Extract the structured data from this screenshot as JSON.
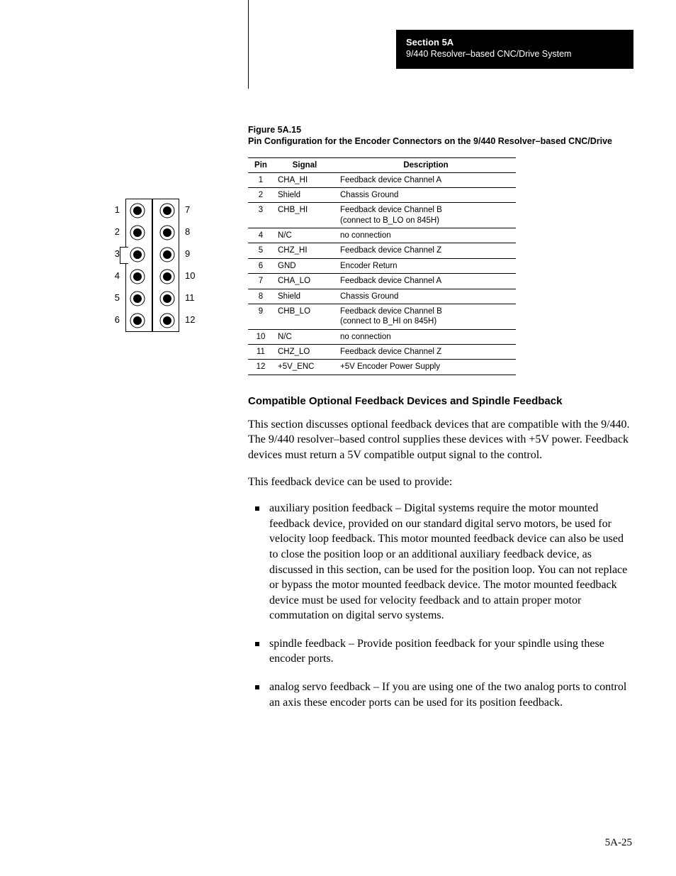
{
  "header": {
    "section": "Section 5A",
    "subtitle": "9/440 Resolver–based CNC/Drive System"
  },
  "figure": {
    "label": "Figure 5A.15",
    "caption": "Pin Configuration for the Encoder Connectors on the 9/440 Resolver–based CNC/Drive"
  },
  "connector": {
    "left_labels": [
      "1",
      "2",
      "3",
      "4",
      "5",
      "6"
    ],
    "right_labels": [
      "7",
      "8",
      "9",
      "10",
      "11",
      "12"
    ]
  },
  "table": {
    "columns": [
      "Pin",
      "Signal",
      "Description"
    ],
    "rows": [
      [
        "1",
        "CHA_HI",
        "Feedback device Channel A"
      ],
      [
        "2",
        "Shield",
        "Chassis Ground"
      ],
      [
        "3",
        "CHB_HI",
        "Feedback device Channel B\n(connect to B_LO on 845H)"
      ],
      [
        "4",
        "N/C",
        "no connection"
      ],
      [
        "5",
        "CHZ_HI",
        "Feedback device Channel Z"
      ],
      [
        "6",
        "GND",
        "Encoder Return"
      ],
      [
        "7",
        "CHA_LO",
        "Feedback device Channel A"
      ],
      [
        "8",
        "Shield",
        "Chassis Ground"
      ],
      [
        "9",
        "CHB_LO",
        "Feedback device Channel B\n(connect to B_HI on 845H)"
      ],
      [
        "10",
        "N/C",
        "no connection"
      ],
      [
        "11",
        "CHZ_LO",
        "Feedback device Channel Z"
      ],
      [
        "12",
        "+5V_ENC",
        "+5V Encoder Power Supply"
      ]
    ]
  },
  "heading": "Compatible Optional Feedback Devices and Spindle Feedback",
  "para1": "This section discusses optional feedback devices that are compatible with the 9/440.   The 9/440 resolver–based control supplies these devices with +5V power.   Feedback devices must return a 5V compatible output signal to the control.",
  "para2": "This feedback device can be used to provide:",
  "bullets": [
    "auxiliary position feedback – Digital systems require the motor mounted feedback device, provided on our standard digital servo motors, be used for velocity loop feedback.  This motor mounted feedback device can also be used to close the position loop or an additional auxiliary feedback device, as discussed in this section, can be used for the position loop.  You can not replace or bypass the motor mounted feedback device.  The motor mounted feedback device must be used for velocity feedback and to attain proper motor commutation on digital servo systems.",
    "spindle feedback – Provide position feedback for your spindle using these encoder ports.",
    "analog servo feedback – If you are using one of the two analog ports to control an axis these encoder ports can be used for its position feedback."
  ],
  "page_number": "5A-25"
}
